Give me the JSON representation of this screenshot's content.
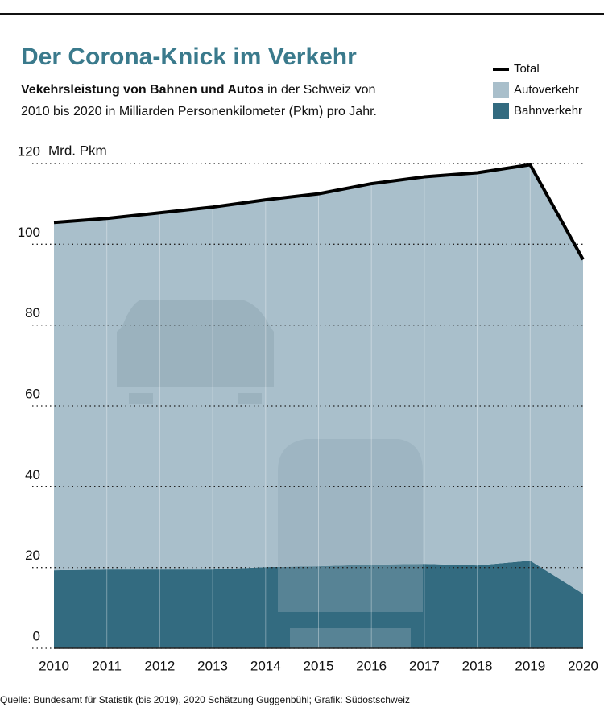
{
  "chart_data": {
    "type": "stacked_area",
    "title": "Der Corona-Knick im Verkehr",
    "subtitle_bold": "Vekehrsleistung von Bahnen und Autos",
    "subtitle_line1": "in der Schweiz von",
    "subtitle_line2": "2010 bis 2020 in Milliarden Personenkilometer (Pkm) pro Jahr.",
    "y_unit": "Mrd. Pkm",
    "source": "Quelle: Bundesamt für Statistik (bis 2019), 2020 Schätzung Guggenbühl; Grafik: Südostschweiz",
    "categories": [
      "2010",
      "2011",
      "2012",
      "2013",
      "2014",
      "2015",
      "2016",
      "2017",
      "2018",
      "2019",
      "2020"
    ],
    "series": [
      {
        "name": "Bahnverkehr",
        "color": "#336b80",
        "values": [
          19.3,
          19.5,
          19.5,
          19.5,
          20.1,
          20.3,
          20.7,
          20.9,
          20.5,
          21.7,
          13.5
        ]
      },
      {
        "name": "Autoverkehr",
        "color": "#a9bfcb",
        "values": [
          86.1,
          86.9,
          88.3,
          89.7,
          90.9,
          92.2,
          94.3,
          95.8,
          97.2,
          98.0,
          82.7
        ]
      }
    ],
    "total": {
      "name": "Total",
      "color": "#000000",
      "values": [
        105.4,
        106.4,
        107.8,
        109.2,
        111.0,
        112.5,
        115.0,
        116.7,
        117.7,
        119.7,
        96.2
      ]
    },
    "ylim": [
      0,
      120
    ],
    "yticks": [
      0,
      20,
      40,
      60,
      80,
      100,
      120
    ],
    "grid": true
  }
}
